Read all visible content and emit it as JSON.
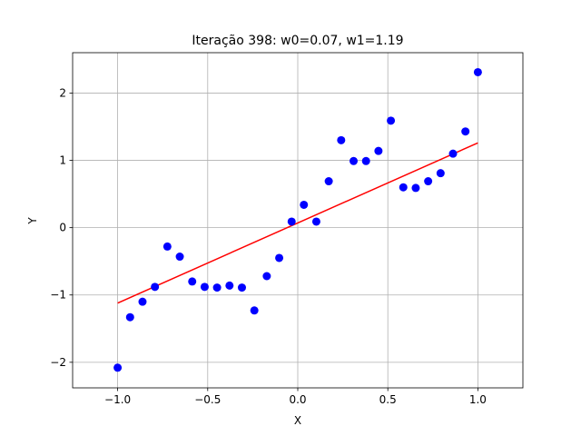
{
  "chart_data": {
    "type": "scatter",
    "title": "Iteração 398: w0=0.07, w1=1.19",
    "xlabel": "X",
    "ylabel": "Y",
    "xlim": [
      -1.25,
      1.25
    ],
    "ylim": [
      -2.38,
      2.6
    ],
    "xticks": [
      -1.0,
      -0.5,
      0.0,
      0.5,
      1.0
    ],
    "xtick_labels": [
      "−1.0",
      "−0.5",
      "0.0",
      "0.5",
      "1.0"
    ],
    "yticks": [
      -2,
      -1,
      0,
      1,
      2
    ],
    "ytick_labels": [
      "−2",
      "−1",
      "0",
      "1",
      "2"
    ],
    "grid": true,
    "series": [
      {
        "kind": "scatter",
        "color": "#0000ff",
        "x": [
          -1.0,
          -0.931,
          -0.862,
          -0.793,
          -0.724,
          -0.655,
          -0.586,
          -0.517,
          -0.448,
          -0.379,
          -0.31,
          -0.241,
          -0.172,
          -0.103,
          -0.034,
          0.034,
          0.103,
          0.172,
          0.241,
          0.31,
          0.379,
          0.448,
          0.517,
          0.586,
          0.655,
          0.724,
          0.793,
          0.862,
          0.931,
          1.0
        ],
        "y": [
          -2.08,
          -1.33,
          -1.1,
          -0.88,
          -0.28,
          -0.43,
          -0.8,
          -0.88,
          -0.89,
          -0.86,
          -0.89,
          -1.23,
          -0.72,
          -0.45,
          0.09,
          0.34,
          0.09,
          0.69,
          1.3,
          0.99,
          0.99,
          1.14,
          1.59,
          0.6,
          0.59,
          0.69,
          0.81,
          1.1,
          1.43,
          2.31
        ]
      },
      {
        "kind": "line",
        "color": "#ff0000",
        "x": [
          -1.0,
          1.0
        ],
        "y": [
          -1.12,
          1.26
        ]
      }
    ]
  }
}
